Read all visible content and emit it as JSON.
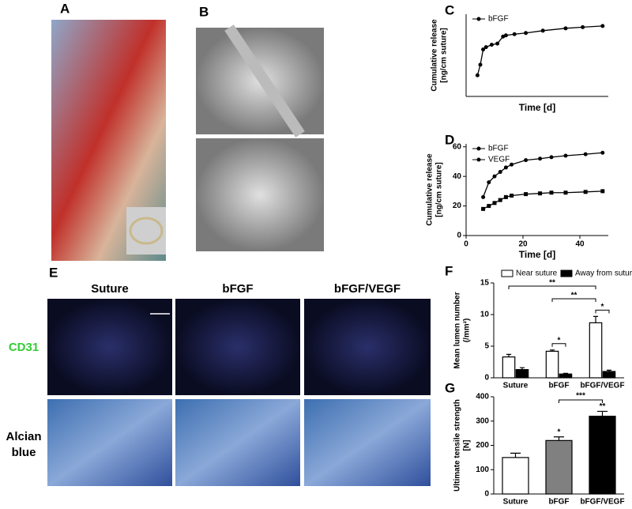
{
  "figure": {
    "panels": [
      "A",
      "B",
      "C",
      "D",
      "E",
      "F",
      "G"
    ],
    "columns": [
      "Suture",
      "bFGF",
      "bFGF/VEGF"
    ],
    "rows": [
      "CD31",
      "Alcian",
      "blue"
    ]
  },
  "chart_data": [
    {
      "type": "line",
      "xlabel": "Time [d]",
      "ylabel": [
        "Cumulative release",
        "[ng/cm suture]"
      ],
      "x": [
        4,
        5,
        6,
        7,
        9,
        11,
        13,
        14,
        17,
        21,
        27,
        35,
        41,
        48
      ],
      "series": [
        {
          "name": "bFGF",
          "color": "#000000",
          "values": [
            18,
            27,
            40,
            42,
            44,
            45,
            51,
            52,
            53,
            54,
            56,
            58,
            59,
            60
          ]
        }
      ],
      "xlim": [
        0,
        50
      ],
      "ylim": [
        0,
        70
      ],
      "legend": "upper left"
    },
    {
      "type": "line",
      "xlabel": "Time [d]",
      "ylabel": [
        "Cumulative release",
        "[ng/cm suture]"
      ],
      "x": [
        6,
        8,
        10,
        12,
        14,
        16,
        21,
        26,
        30,
        35,
        42,
        48
      ],
      "series": [
        {
          "name": "bFGF",
          "color": "#000000",
          "values": [
            26,
            36,
            40,
            43,
            46,
            48,
            51,
            52,
            53,
            54,
            55,
            56
          ]
        },
        {
          "name": "VEGF",
          "color": "#000000",
          "values": [
            18,
            20,
            22,
            24,
            26,
            27,
            28,
            28.5,
            29,
            29,
            29.5,
            30
          ]
        }
      ],
      "xlim": [
        0,
        50
      ],
      "ylim": [
        0,
        62
      ],
      "xticks": [
        0,
        20,
        40
      ],
      "yticks": [
        0,
        20,
        40,
        60
      ],
      "legend": "upper left"
    },
    {
      "type": "bar",
      "ylabel": [
        "Mean lumen number",
        "(/mm²)"
      ],
      "categories": [
        "Suture",
        "bFGF",
        "bFGF/VEGF"
      ],
      "series": [
        {
          "name": "Near suture",
          "color": "#ffffff",
          "values": [
            3.3,
            4.2,
            8.7
          ],
          "errors": [
            0.4,
            0.2,
            1.0
          ]
        },
        {
          "name": "Away from suture",
          "color": "#000000",
          "values": [
            1.3,
            0.6,
            1.0
          ],
          "errors": [
            0.3,
            0.1,
            0.2
          ]
        }
      ],
      "ylim": [
        0,
        15
      ],
      "yticks": [
        0,
        5,
        10,
        15
      ],
      "legend": "top",
      "annotations": [
        "**",
        "**",
        "*",
        "*"
      ]
    },
    {
      "type": "bar",
      "ylabel": [
        "Ultimate tensile strength",
        "[N]"
      ],
      "categories": [
        "Suture",
        "bFGF",
        "bFGF/VEGF"
      ],
      "values": [
        150,
        220,
        320
      ],
      "errors": [
        18,
        15,
        20
      ],
      "colors": [
        "#ffffff",
        "#808080",
        "#000000"
      ],
      "ylim": [
        0,
        400
      ],
      "yticks": [
        0,
        100,
        200,
        300,
        400
      ],
      "annotations": [
        "*",
        "**",
        "***"
      ]
    }
  ]
}
